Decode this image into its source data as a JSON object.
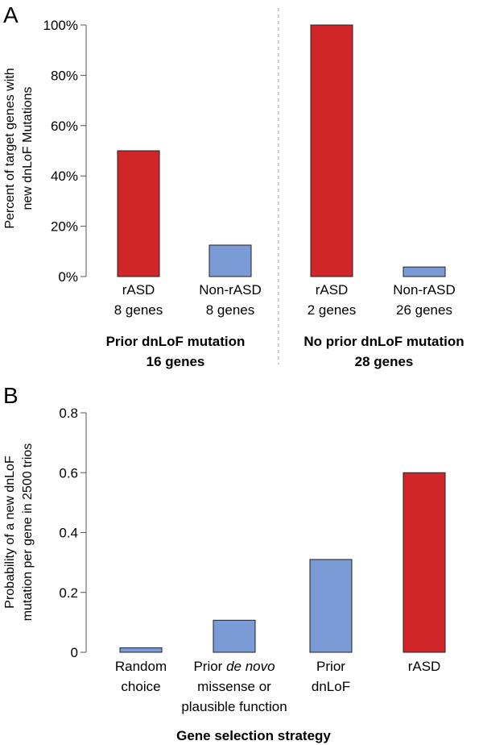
{
  "colors": {
    "red": "#d0262a",
    "blue": "#7b9bd6"
  },
  "chart_data": [
    {
      "panel": "A",
      "type": "bar",
      "ylabel_lines": [
        "Percent of target genes with",
        "new dnLoF Mutations"
      ],
      "ylim": [
        0,
        100
      ],
      "yticks": [
        "0%",
        "20%",
        "40%",
        "60%",
        "80%",
        "100%"
      ],
      "categories": [
        {
          "name": "rASD",
          "sub": "8 genes",
          "value": 50,
          "color": "red"
        },
        {
          "name": "Non-rASD",
          "sub": "8 genes",
          "value": 12.5,
          "color": "blue"
        },
        {
          "name": "rASD",
          "sub": "2 genes",
          "value": 100,
          "color": "red"
        },
        {
          "name": "Non-rASD",
          "sub": "26 genes",
          "value": 3.8,
          "color": "blue"
        }
      ],
      "groups": [
        {
          "line1": "Prior dnLoF mutation",
          "line2": "16 genes"
        },
        {
          "line1": "No prior dnLoF mutation",
          "line2": "28 genes"
        }
      ]
    },
    {
      "panel": "B",
      "type": "bar",
      "ylabel_lines": [
        "Probability of a new dnLoF",
        "mutation per gene in 2500 trios"
      ],
      "ylim": [
        0,
        0.8
      ],
      "yticks": [
        "0",
        "0.2",
        "0.4",
        "0.6",
        "0.8"
      ],
      "categories": [
        {
          "label_lines": [
            "Random",
            "choice"
          ],
          "value": 0.015,
          "color": "blue"
        },
        {
          "label_lines": [
            "Prior de novo",
            "missense or",
            "plausible function"
          ],
          "value": 0.107,
          "color": "blue"
        },
        {
          "label_lines": [
            "Prior",
            "dnLoF"
          ],
          "value": 0.31,
          "color": "blue"
        },
        {
          "label_lines": [
            "rASD"
          ],
          "value": 0.6,
          "color": "red"
        }
      ],
      "xlabel": "Gene selection strategy"
    }
  ]
}
